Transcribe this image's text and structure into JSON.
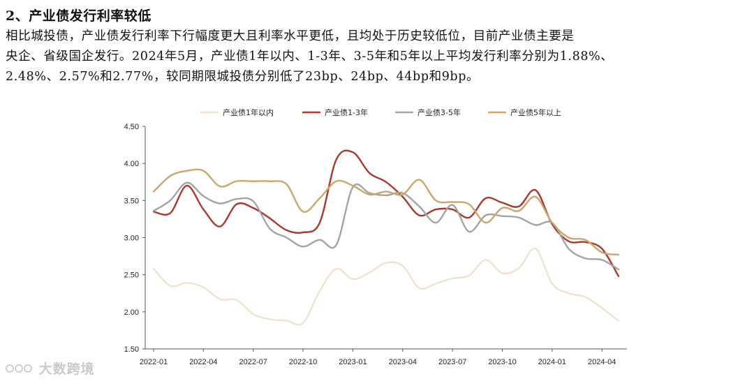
{
  "heading": "2、产业债发行利率较低",
  "paragraph_lines": [
    "相比城投债，产业债发行利率下行幅度更大且利率水平更低，且均处于历史较低位，目前产业债主要是",
    "央企、省级国企发行。2024年5月，产业债1年以内、1-3年、3-5年和5年以上平均发行利率分别为1.88%、",
    "2.48%、2.57%和2.77%，较同期限城投债分别低了23bp、24bp、44bp和9bp。"
  ],
  "watermark": "大数跨境",
  "chart_data": {
    "type": "line",
    "title": "",
    "xlabel": "",
    "ylabel": "",
    "ylim": [
      1.5,
      4.5
    ],
    "yticks": [
      "1.50",
      "2.00",
      "2.50",
      "3.00",
      "3.50",
      "4.00",
      "4.50"
    ],
    "xticks": [
      "2022-01",
      "2022-04",
      "2022-07",
      "2022-10",
      "2023-01",
      "2023-04",
      "2023-07",
      "2023-10",
      "2024-01",
      "2024-04"
    ],
    "x_count": 29,
    "legend_position": "top",
    "series": [
      {
        "name": "产业债1年以内",
        "color": "#efe3cf",
        "values": [
          2.58,
          2.35,
          2.39,
          2.33,
          2.17,
          2.16,
          1.97,
          1.9,
          1.88,
          1.85,
          2.28,
          2.58,
          2.44,
          2.53,
          2.66,
          2.62,
          2.32,
          2.38,
          2.45,
          2.49,
          2.7,
          2.52,
          2.59,
          2.85,
          2.38,
          2.25,
          2.2,
          2.05,
          1.88
        ]
      },
      {
        "name": "产业债1-3年",
        "color": "#a8382b",
        "values": [
          3.35,
          3.33,
          3.7,
          3.38,
          3.15,
          3.45,
          3.4,
          3.26,
          3.1,
          3.07,
          3.2,
          4.05,
          4.15,
          3.87,
          3.75,
          3.55,
          3.3,
          3.38,
          3.38,
          3.27,
          3.53,
          3.47,
          3.42,
          3.64,
          3.18,
          2.95,
          2.94,
          2.85,
          2.48
        ]
      },
      {
        "name": "产业债3-5年",
        "color": "#a3a3a3",
        "values": [
          3.36,
          3.5,
          3.74,
          3.56,
          3.46,
          3.52,
          3.49,
          3.12,
          3.0,
          2.88,
          2.97,
          2.9,
          3.68,
          3.6,
          3.57,
          3.6,
          3.42,
          3.2,
          3.44,
          3.08,
          3.3,
          3.29,
          3.27,
          3.17,
          3.2,
          2.85,
          2.72,
          2.7,
          2.57
        ]
      },
      {
        "name": "产业债5年以上",
        "color": "#c9a66b",
        "values": [
          3.62,
          3.83,
          3.9,
          3.9,
          3.69,
          3.76,
          3.76,
          3.76,
          3.72,
          3.35,
          3.53,
          3.76,
          3.7,
          3.58,
          3.62,
          3.58,
          3.78,
          3.5,
          3.48,
          3.45,
          3.2,
          3.4,
          3.36,
          3.55,
          3.2,
          3.0,
          2.97,
          2.8,
          2.77
        ]
      }
    ]
  }
}
